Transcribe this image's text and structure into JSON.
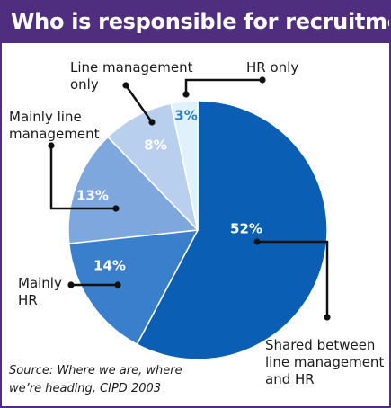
{
  "colors": {
    "header_bg": "#4f2d7f",
    "border": "#4f2d7f",
    "header_text": "#ffffff",
    "slice_outline": "#ffffff",
    "leader": "#111111"
  },
  "chart_data": {
    "type": "pie",
    "title": "Who is responsible for recruitment?",
    "source": [
      "Source: Where we are, where",
      "we’re heading, CIPD 2003"
    ],
    "slices": [
      {
        "label_lines": [
          "Shared between",
          "line management",
          "and HR"
        ],
        "value": 52,
        "value_label": "52%",
        "color": "#0a5fb4",
        "text_color": "#ffffff"
      },
      {
        "label_lines": [
          "Mainly",
          "HR"
        ],
        "value": 14,
        "value_label": "14%",
        "color": "#3a7fcc",
        "text_color": "#ffffff"
      },
      {
        "label_lines": [
          "Mainly line",
          "management"
        ],
        "value": 13,
        "value_label": "13%",
        "color": "#7ea8dd",
        "text_color": "#ffffff"
      },
      {
        "label_lines": [
          "Line management",
          "only"
        ],
        "value": 8,
        "value_label": "8%",
        "color": "#b9cfee",
        "text_color": "#ffffff"
      },
      {
        "label_lines": [
          "HR only"
        ],
        "value": 3,
        "value_label": "3%",
        "color": "#dff2fb",
        "text_color": "#2a7fc0"
      }
    ]
  }
}
